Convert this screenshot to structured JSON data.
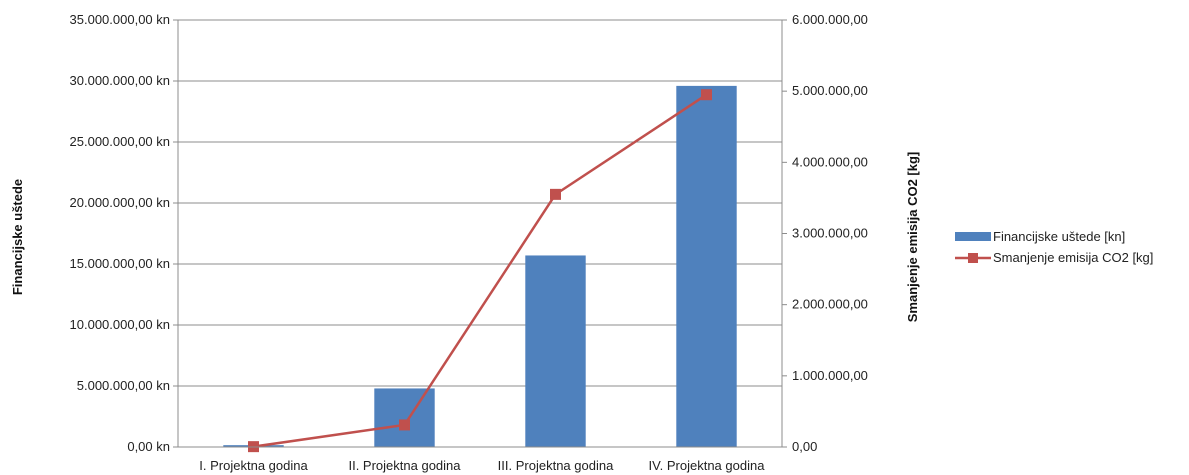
{
  "chart_data": {
    "type": "bar",
    "categories": [
      "I. Projektna godina",
      "II. Projektna godina",
      "III. Projektna godina",
      "IV. Projektna godina"
    ],
    "series": [
      {
        "name": "Financijske uštede [kn]",
        "type": "bar",
        "axis": "left",
        "color": "#4f81bd",
        "values": [
          150000,
          4800000,
          15700000,
          29600000
        ]
      },
      {
        "name": "Smanjenje emisija CO2 [kg]",
        "type": "line",
        "axis": "right",
        "color": "#c0504d",
        "marker": "square",
        "values": [
          5000,
          310000,
          3550000,
          4950000
        ]
      }
    ],
    "ylabel": "Financijske uštede",
    "y2label": "Smanjenje emisija CO2 [kg]",
    "ylim": [
      0,
      35000000
    ],
    "y2lim": [
      0,
      6000000
    ],
    "yticks": [
      "0,00 kn",
      "5.000.000,00 kn",
      "10.000.000,00 kn",
      "15.000.000,00 kn",
      "20.000.000,00 kn",
      "25.000.000,00 kn",
      "30.000.000,00 kn",
      "35.000.000,00 kn"
    ],
    "y2ticks": [
      "0,00",
      "1.000.000,00",
      "2.000.000,00",
      "3.000.000,00",
      "4.000.000,00",
      "5.000.000,00",
      "6.000.000,00"
    ],
    "grid": true,
    "legend": "right"
  }
}
